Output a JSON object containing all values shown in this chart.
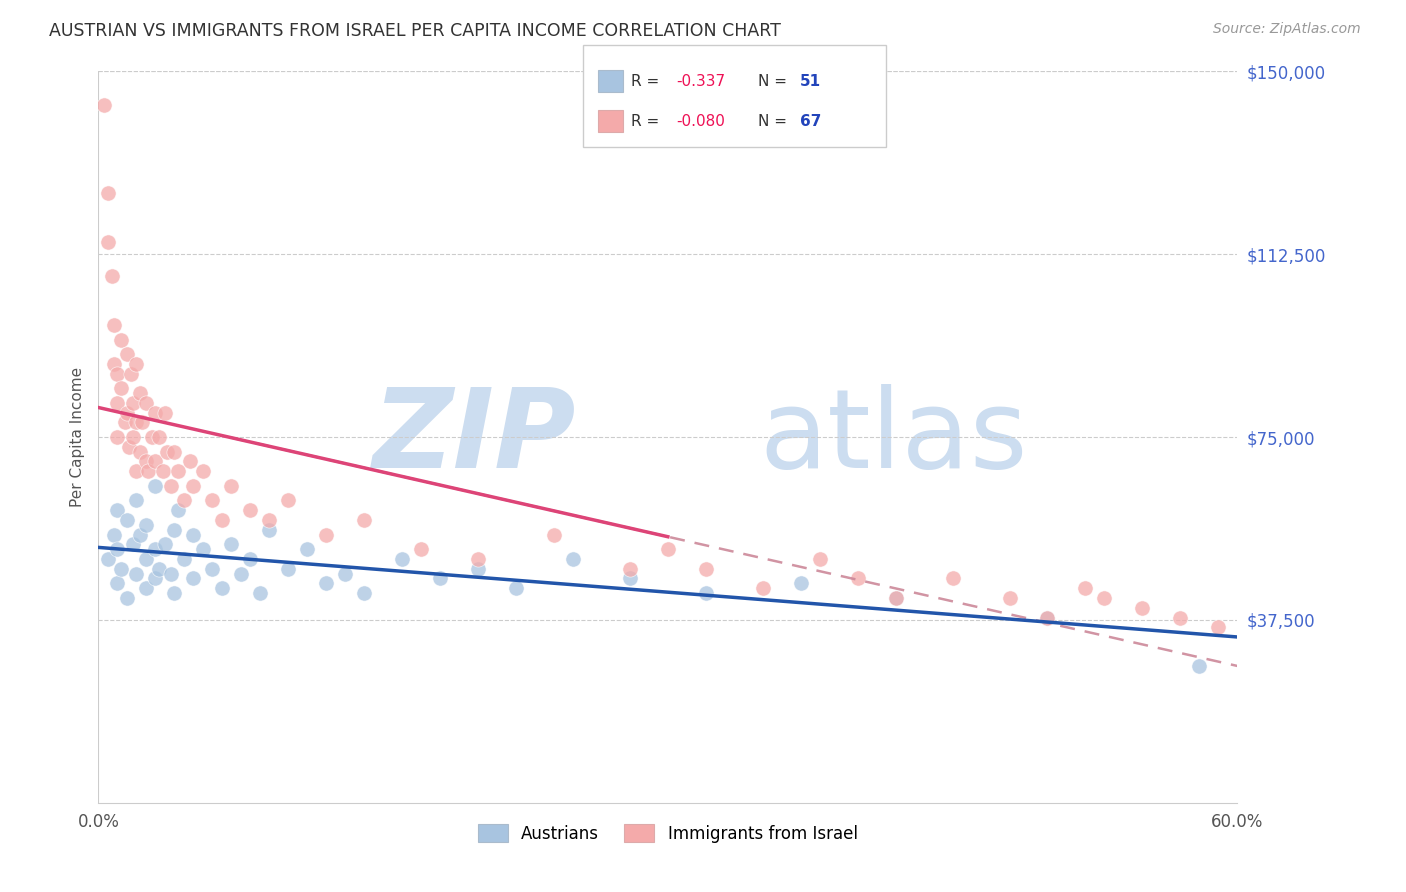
{
  "title": "AUSTRIAN VS IMMIGRANTS FROM ISRAEL PER CAPITA INCOME CORRELATION CHART",
  "source": "Source: ZipAtlas.com",
  "ylabel": "Per Capita Income",
  "xmin": 0.0,
  "xmax": 0.6,
  "ymin": 0,
  "ymax": 150000,
  "blue_color": "#A8C4E0",
  "pink_color": "#F4AAAA",
  "blue_line_color": "#2255AA",
  "pink_line_color": "#DD4477",
  "dashed_line_color": "#CC8899",
  "title_color": "#333333",
  "source_color": "#999999",
  "axis_label_color": "#4466CC",
  "legend_r_color": "#EE1155",
  "legend_n_color": "#2244BB",
  "grid_color": "#CCCCCC",
  "austrians_x": [
    0.005,
    0.008,
    0.01,
    0.01,
    0.01,
    0.012,
    0.015,
    0.015,
    0.018,
    0.02,
    0.02,
    0.022,
    0.025,
    0.025,
    0.025,
    0.03,
    0.03,
    0.03,
    0.032,
    0.035,
    0.038,
    0.04,
    0.04,
    0.042,
    0.045,
    0.05,
    0.05,
    0.055,
    0.06,
    0.065,
    0.07,
    0.075,
    0.08,
    0.085,
    0.09,
    0.1,
    0.11,
    0.12,
    0.13,
    0.14,
    0.16,
    0.18,
    0.2,
    0.22,
    0.25,
    0.28,
    0.32,
    0.37,
    0.42,
    0.5,
    0.58
  ],
  "austrians_y": [
    50000,
    55000,
    60000,
    45000,
    52000,
    48000,
    58000,
    42000,
    53000,
    62000,
    47000,
    55000,
    50000,
    44000,
    57000,
    65000,
    52000,
    46000,
    48000,
    53000,
    47000,
    56000,
    43000,
    60000,
    50000,
    55000,
    46000,
    52000,
    48000,
    44000,
    53000,
    47000,
    50000,
    43000,
    56000,
    48000,
    52000,
    45000,
    47000,
    43000,
    50000,
    46000,
    48000,
    44000,
    50000,
    46000,
    43000,
    45000,
    42000,
    38000,
    28000
  ],
  "israel_x": [
    0.003,
    0.005,
    0.005,
    0.007,
    0.008,
    0.008,
    0.01,
    0.01,
    0.01,
    0.012,
    0.012,
    0.014,
    0.015,
    0.015,
    0.016,
    0.017,
    0.018,
    0.018,
    0.02,
    0.02,
    0.02,
    0.022,
    0.022,
    0.023,
    0.025,
    0.025,
    0.026,
    0.028,
    0.03,
    0.03,
    0.032,
    0.034,
    0.035,
    0.036,
    0.038,
    0.04,
    0.042,
    0.045,
    0.048,
    0.05,
    0.055,
    0.06,
    0.065,
    0.07,
    0.08,
    0.09,
    0.1,
    0.12,
    0.14,
    0.17,
    0.2,
    0.24,
    0.28,
    0.3,
    0.32,
    0.35,
    0.38,
    0.4,
    0.42,
    0.45,
    0.48,
    0.5,
    0.52,
    0.53,
    0.55,
    0.57,
    0.59
  ],
  "israel_y": [
    143000,
    125000,
    115000,
    108000,
    98000,
    90000,
    88000,
    82000,
    75000,
    95000,
    85000,
    78000,
    92000,
    80000,
    73000,
    88000,
    82000,
    75000,
    90000,
    78000,
    68000,
    84000,
    72000,
    78000,
    70000,
    82000,
    68000,
    75000,
    80000,
    70000,
    75000,
    68000,
    80000,
    72000,
    65000,
    72000,
    68000,
    62000,
    70000,
    65000,
    68000,
    62000,
    58000,
    65000,
    60000,
    58000,
    62000,
    55000,
    58000,
    52000,
    50000,
    55000,
    48000,
    52000,
    48000,
    44000,
    50000,
    46000,
    42000,
    46000,
    42000,
    38000,
    44000,
    42000,
    40000,
    38000,
    36000
  ],
  "pink_line_x_end": 0.3,
  "dashed_line_x_start": 0.07
}
